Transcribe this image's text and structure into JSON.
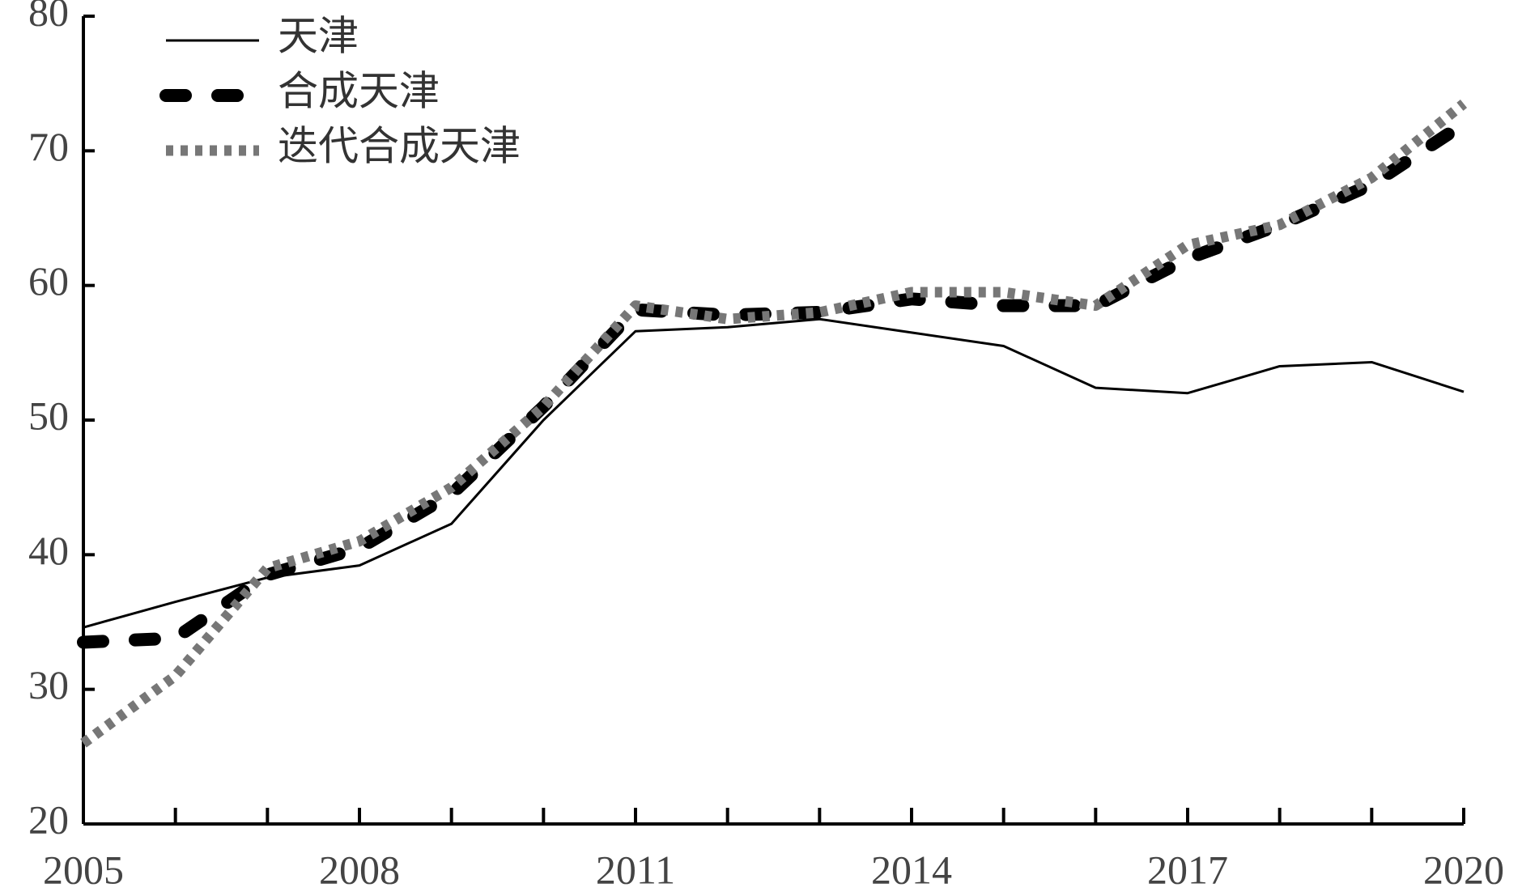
{
  "chart_data": {
    "type": "line",
    "x": [
      2005,
      2006,
      2007,
      2008,
      2009,
      2010,
      2011,
      2012,
      2013,
      2014,
      2015,
      2016,
      2017,
      2018,
      2019,
      2020
    ],
    "xlim": [
      2005,
      2020
    ],
    "xticks": [
      2005,
      2008,
      2011,
      2014,
      2017,
      2020
    ],
    "ylim": [
      20,
      80
    ],
    "yticks": [
      20,
      30,
      40,
      50,
      60,
      70,
      80
    ],
    "legend": "upper-left",
    "series": [
      {
        "name": "天津",
        "color": "#000000",
        "style": "solid",
        "values": [
          34.6,
          36.5,
          38.3,
          39.2,
          42.3,
          50.0,
          56.6,
          56.9,
          57.5,
          56.5,
          55.5,
          52.4,
          52.0,
          54.0,
          54.3,
          52.1
        ]
      },
      {
        "name": "合成天津",
        "color": "#000000",
        "style": "dashed",
        "values": [
          33.5,
          33.8,
          38.5,
          40.5,
          44.5,
          51.0,
          58.2,
          57.8,
          58.0,
          59.0,
          58.5,
          58.5,
          62.0,
          64.5,
          67.5,
          72.0
        ]
      },
      {
        "name": "迭代合成天津",
        "color": "#777777",
        "style": "dotted",
        "values": [
          26.0,
          31.0,
          39.0,
          41.0,
          45.0,
          51.0,
          58.5,
          57.5,
          58.0,
          59.5,
          59.5,
          58.5,
          63.0,
          64.5,
          68.0,
          73.5
        ]
      }
    ]
  }
}
